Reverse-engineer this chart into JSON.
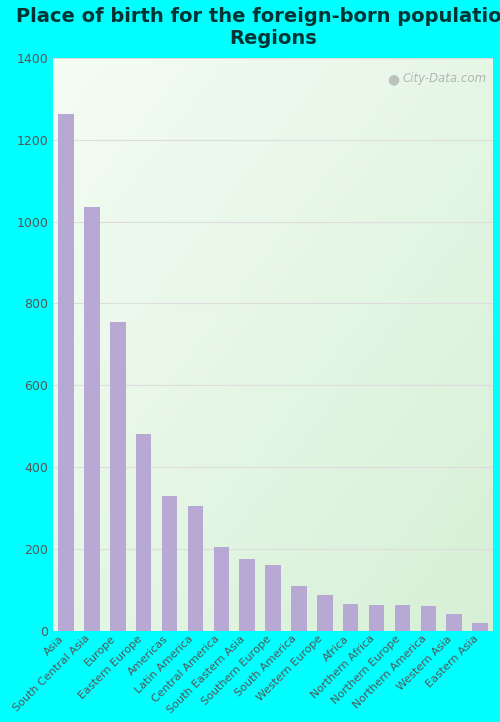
{
  "title": "Place of birth for the foreign-born population -\nRegions",
  "categories": [
    "Asia",
    "South Central Asia",
    "Europe",
    "Eastern Europe",
    "Americas",
    "Latin America",
    "Central America",
    "South Eastern Asia",
    "Southern Europe",
    "South America",
    "Western Europe",
    "Africa",
    "Northern Africa",
    "Northern Europe",
    "Northern America",
    "Western Asia",
    "Eastern Asia"
  ],
  "values": [
    1262,
    1035,
    755,
    480,
    330,
    305,
    205,
    175,
    160,
    110,
    87,
    65,
    63,
    62,
    60,
    40,
    18
  ],
  "bar_color": "#b8a9d4",
  "fig_bg_color": "#00ffff",
  "plot_bg_top_left": "#f5fef5",
  "plot_bg_bottom_right": "#c8ecd8",
  "grid_color": "#dddddd",
  "ylim": [
    0,
    1400
  ],
  "yticks": [
    0,
    200,
    400,
    600,
    800,
    1000,
    1200,
    1400
  ],
  "watermark": "City-Data.com",
  "title_fontsize": 14,
  "tick_fontsize": 8,
  "title_color": "#003333"
}
